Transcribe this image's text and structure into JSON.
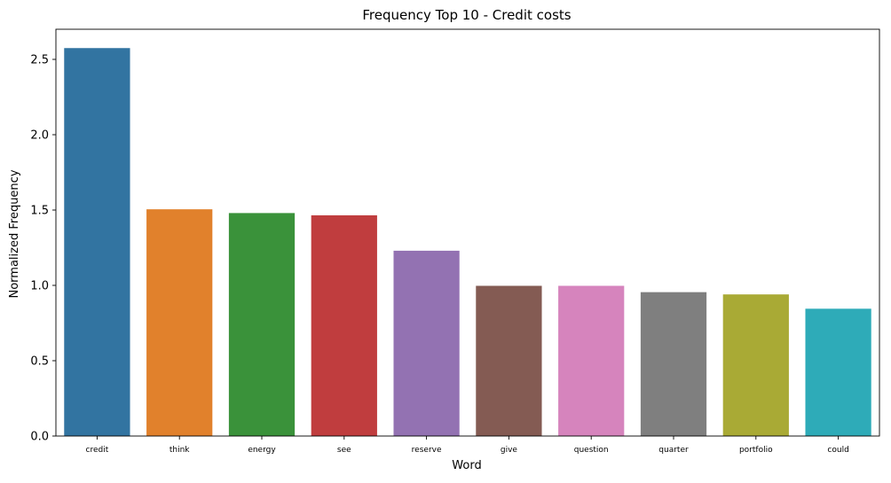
{
  "chart_data": {
    "type": "bar",
    "title": "Frequency Top 10 - Credit costs",
    "xlabel": "Word",
    "ylabel": "Normalized Frequency",
    "categories": [
      "credit",
      "think",
      "energy",
      "see",
      "reserve",
      "give",
      "question",
      "quarter",
      "portfolio",
      "could"
    ],
    "values": [
      2.575,
      1.505,
      1.48,
      1.465,
      1.23,
      0.997,
      0.997,
      0.955,
      0.94,
      0.845
    ],
    "colors": [
      "#3274a1",
      "#e1812c",
      "#3a923a",
      "#c03d3e",
      "#9372b2",
      "#845b53",
      "#d684bd",
      "#7f7f7f",
      "#a9aa35",
      "#2eabb8"
    ],
    "yticks": [
      "0.0",
      "0.5",
      "1.0",
      "1.5",
      "2.0",
      "2.5"
    ],
    "ylim": [
      0,
      2.7
    ],
    "grid": false,
    "legend": "none"
  }
}
